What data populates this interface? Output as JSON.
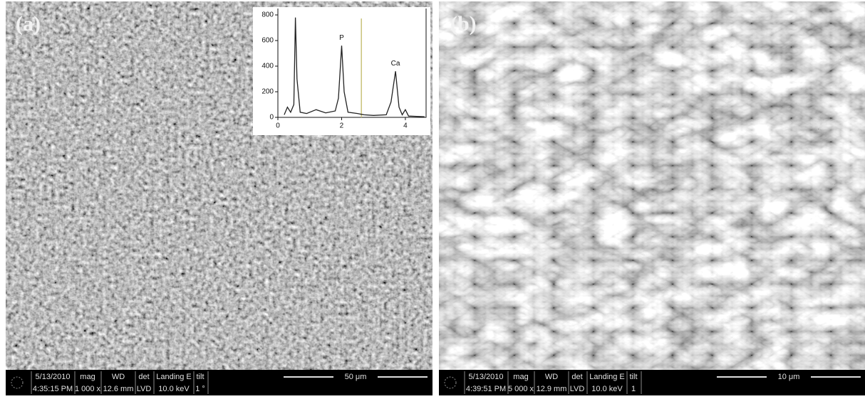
{
  "panels": [
    {
      "label": "(a)",
      "info": {
        "date": "5/13/2010",
        "time": "4:35:15 PM",
        "mag_label": "mag",
        "mag": "1 000 x",
        "wd_label": "WD",
        "wd": "12.6 mm",
        "det_label": "det",
        "det": "LVD",
        "landing_label": "Landing E",
        "landing": "10.0 keV",
        "tilt_label": "tilt",
        "tilt": "1 °"
      },
      "scale_bar": "50 μm"
    },
    {
      "label": "(b)",
      "info": {
        "date": "5/13/2010",
        "time": "4:39:51 PM",
        "mag_label": "mag",
        "mag": "5 000 x",
        "wd_label": "WD",
        "wd": "12.9 mm",
        "det_label": "det",
        "det": "LVD",
        "landing_label": "Landing E",
        "landing": "10.0 keV",
        "tilt_label": "tilt",
        "tilt": "1"
      },
      "scale_bar": "10 μm"
    }
  ],
  "chart_data": {
    "type": "line",
    "color": "#222222",
    "x": [
      0.2,
      0.3,
      0.4,
      0.5,
      0.55,
      0.6,
      0.7,
      0.9,
      1.2,
      1.5,
      1.8,
      1.9,
      2.0,
      2.08,
      2.2,
      2.5,
      2.7,
      3.0,
      3.4,
      3.55,
      3.69,
      3.8,
      3.9,
      4.0,
      4.1,
      4.6
    ],
    "values": [
      20,
      80,
      40,
      100,
      780,
      300,
      40,
      30,
      60,
      35,
      50,
      150,
      560,
      200,
      40,
      30,
      20,
      15,
      20,
      120,
      360,
      80,
      20,
      60,
      10,
      5
    ],
    "annotations": [
      "P",
      "Ca"
    ],
    "cursor_x": 2.62,
    "xlim": [
      0,
      4.65
    ],
    "ylim": [
      0,
      850
    ],
    "xticks": [
      0,
      2,
      4
    ],
    "yticks": [
      0,
      200,
      400,
      600,
      800
    ]
  }
}
